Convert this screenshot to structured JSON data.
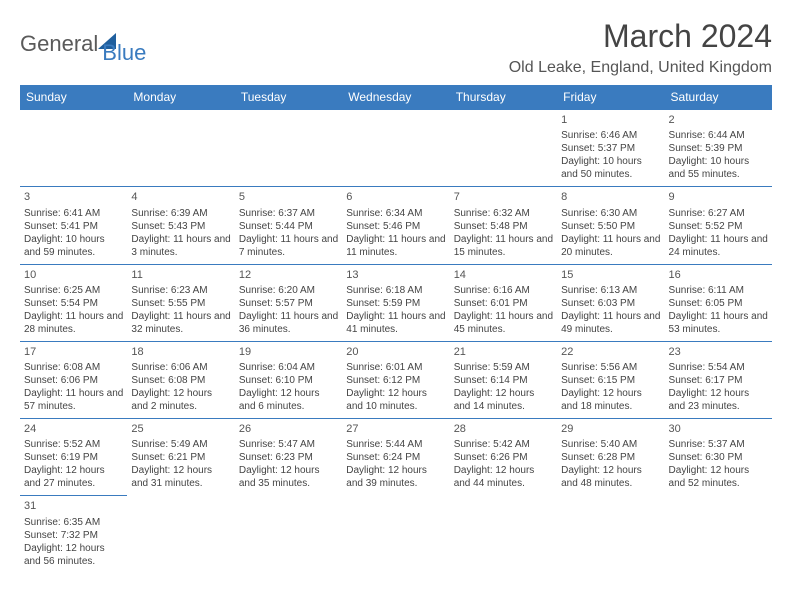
{
  "logo": {
    "part1": "General",
    "part2": "Blue"
  },
  "title": "March 2024",
  "location": "Old Leake, England, United Kingdom",
  "colors": {
    "header_bg": "#3a7bbf",
    "header_fg": "#ffffff",
    "rule": "#3a7bbf",
    "text": "#444444",
    "logo_gray": "#5a5a5a",
    "logo_blue": "#3a7bbf"
  },
  "weekdays": [
    "Sunday",
    "Monday",
    "Tuesday",
    "Wednesday",
    "Thursday",
    "Friday",
    "Saturday"
  ],
  "grid": [
    [
      null,
      null,
      null,
      null,
      null,
      {
        "n": "1",
        "sr": "6:46 AM",
        "ss": "5:37 PM",
        "dl": "10 hours and 50 minutes."
      },
      {
        "n": "2",
        "sr": "6:44 AM",
        "ss": "5:39 PM",
        "dl": "10 hours and 55 minutes."
      }
    ],
    [
      {
        "n": "3",
        "sr": "6:41 AM",
        "ss": "5:41 PM",
        "dl": "10 hours and 59 minutes."
      },
      {
        "n": "4",
        "sr": "6:39 AM",
        "ss": "5:43 PM",
        "dl": "11 hours and 3 minutes."
      },
      {
        "n": "5",
        "sr": "6:37 AM",
        "ss": "5:44 PM",
        "dl": "11 hours and 7 minutes."
      },
      {
        "n": "6",
        "sr": "6:34 AM",
        "ss": "5:46 PM",
        "dl": "11 hours and 11 minutes."
      },
      {
        "n": "7",
        "sr": "6:32 AM",
        "ss": "5:48 PM",
        "dl": "11 hours and 15 minutes."
      },
      {
        "n": "8",
        "sr": "6:30 AM",
        "ss": "5:50 PM",
        "dl": "11 hours and 20 minutes."
      },
      {
        "n": "9",
        "sr": "6:27 AM",
        "ss": "5:52 PM",
        "dl": "11 hours and 24 minutes."
      }
    ],
    [
      {
        "n": "10",
        "sr": "6:25 AM",
        "ss": "5:54 PM",
        "dl": "11 hours and 28 minutes."
      },
      {
        "n": "11",
        "sr": "6:23 AM",
        "ss": "5:55 PM",
        "dl": "11 hours and 32 minutes."
      },
      {
        "n": "12",
        "sr": "6:20 AM",
        "ss": "5:57 PM",
        "dl": "11 hours and 36 minutes."
      },
      {
        "n": "13",
        "sr": "6:18 AM",
        "ss": "5:59 PM",
        "dl": "11 hours and 41 minutes."
      },
      {
        "n": "14",
        "sr": "6:16 AM",
        "ss": "6:01 PM",
        "dl": "11 hours and 45 minutes."
      },
      {
        "n": "15",
        "sr": "6:13 AM",
        "ss": "6:03 PM",
        "dl": "11 hours and 49 minutes."
      },
      {
        "n": "16",
        "sr": "6:11 AM",
        "ss": "6:05 PM",
        "dl": "11 hours and 53 minutes."
      }
    ],
    [
      {
        "n": "17",
        "sr": "6:08 AM",
        "ss": "6:06 PM",
        "dl": "11 hours and 57 minutes."
      },
      {
        "n": "18",
        "sr": "6:06 AM",
        "ss": "6:08 PM",
        "dl": "12 hours and 2 minutes."
      },
      {
        "n": "19",
        "sr": "6:04 AM",
        "ss": "6:10 PM",
        "dl": "12 hours and 6 minutes."
      },
      {
        "n": "20",
        "sr": "6:01 AM",
        "ss": "6:12 PM",
        "dl": "12 hours and 10 minutes."
      },
      {
        "n": "21",
        "sr": "5:59 AM",
        "ss": "6:14 PM",
        "dl": "12 hours and 14 minutes."
      },
      {
        "n": "22",
        "sr": "5:56 AM",
        "ss": "6:15 PM",
        "dl": "12 hours and 18 minutes."
      },
      {
        "n": "23",
        "sr": "5:54 AM",
        "ss": "6:17 PM",
        "dl": "12 hours and 23 minutes."
      }
    ],
    [
      {
        "n": "24",
        "sr": "5:52 AM",
        "ss": "6:19 PM",
        "dl": "12 hours and 27 minutes."
      },
      {
        "n": "25",
        "sr": "5:49 AM",
        "ss": "6:21 PM",
        "dl": "12 hours and 31 minutes."
      },
      {
        "n": "26",
        "sr": "5:47 AM",
        "ss": "6:23 PM",
        "dl": "12 hours and 35 minutes."
      },
      {
        "n": "27",
        "sr": "5:44 AM",
        "ss": "6:24 PM",
        "dl": "12 hours and 39 minutes."
      },
      {
        "n": "28",
        "sr": "5:42 AM",
        "ss": "6:26 PM",
        "dl": "12 hours and 44 minutes."
      },
      {
        "n": "29",
        "sr": "5:40 AM",
        "ss": "6:28 PM",
        "dl": "12 hours and 48 minutes."
      },
      {
        "n": "30",
        "sr": "5:37 AM",
        "ss": "6:30 PM",
        "dl": "12 hours and 52 minutes."
      }
    ],
    [
      {
        "n": "31",
        "sr": "6:35 AM",
        "ss": "7:32 PM",
        "dl": "12 hours and 56 minutes."
      },
      null,
      null,
      null,
      null,
      null,
      null
    ]
  ],
  "labels": {
    "sunrise": "Sunrise:",
    "sunset": "Sunset:",
    "daylight": "Daylight:"
  }
}
